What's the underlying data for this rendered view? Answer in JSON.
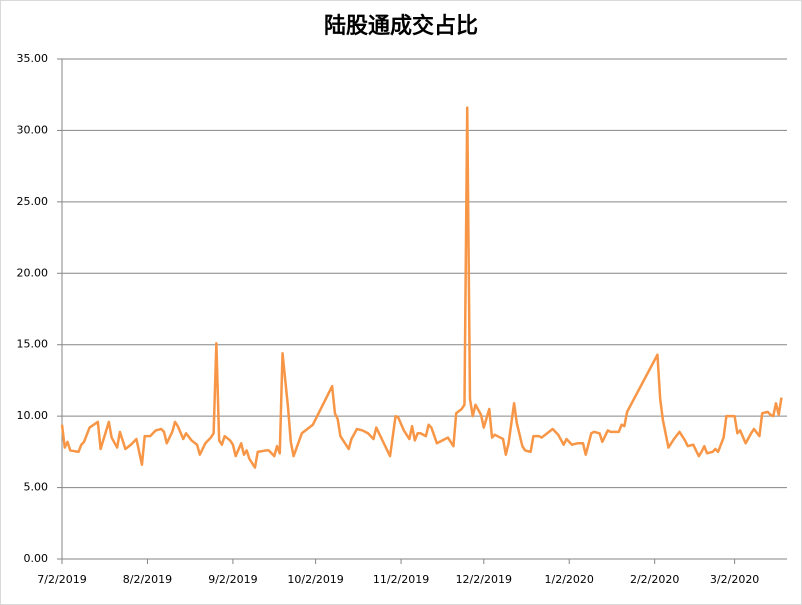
{
  "chart_data": {
    "type": "line",
    "title": "陆股通成交占比",
    "x": [
      "2019-07-02",
      "2019-07-03",
      "2019-07-04",
      "2019-07-05",
      "2019-07-08",
      "2019-07-09",
      "2019-07-10",
      "2019-07-12",
      "2019-07-15",
      "2019-07-16",
      "2019-07-19",
      "2019-07-20",
      "2019-07-22",
      "2019-07-23",
      "2019-07-25",
      "2019-07-27",
      "2019-07-29",
      "2019-07-31",
      "2019-08-01",
      "2019-08-03",
      "2019-08-05",
      "2019-08-07",
      "2019-08-08",
      "2019-08-09",
      "2019-08-11",
      "2019-08-12",
      "2019-08-13",
      "2019-08-15",
      "2019-08-16",
      "2019-08-18",
      "2019-08-20",
      "2019-08-21",
      "2019-08-23",
      "2019-08-25",
      "2019-08-26",
      "2019-08-27",
      "2019-08-28",
      "2019-08-29",
      "2019-08-30",
      "2019-09-01",
      "2019-09-02",
      "2019-09-03",
      "2019-09-05",
      "2019-09-06",
      "2019-09-07",
      "2019-09-08",
      "2019-09-10",
      "2019-09-11",
      "2019-09-14",
      "2019-09-15",
      "2019-09-17",
      "2019-09-18",
      "2019-09-19",
      "2019-09-20",
      "2019-09-22",
      "2019-09-23",
      "2019-09-24",
      "2019-09-27",
      "2019-10-01",
      "2019-10-08",
      "2019-10-09",
      "2019-10-10",
      "2019-10-11",
      "2019-10-14",
      "2019-10-15",
      "2019-10-17",
      "2019-10-19",
      "2019-10-21",
      "2019-10-23",
      "2019-10-24",
      "2019-10-26",
      "2019-10-28",
      "2019-10-29",
      "2019-10-31",
      "2019-11-01",
      "2019-11-03",
      "2019-11-05",
      "2019-11-06",
      "2019-11-07",
      "2019-11-08",
      "2019-11-09",
      "2019-11-11",
      "2019-11-12",
      "2019-11-13",
      "2019-11-15",
      "2019-11-18",
      "2019-11-19",
      "2019-11-21",
      "2019-11-22",
      "2019-11-24",
      "2019-11-25",
      "2019-11-26",
      "2019-11-27",
      "2019-11-28",
      "2019-11-29",
      "2019-12-01",
      "2019-12-02",
      "2019-12-04",
      "2019-12-05",
      "2019-12-06",
      "2019-12-08",
      "2019-12-09",
      "2019-12-10",
      "2019-12-11",
      "2019-12-13",
      "2019-12-14",
      "2019-12-16",
      "2019-12-17",
      "2019-12-19",
      "2019-12-20",
      "2019-12-22",
      "2019-12-23",
      "2019-12-25",
      "2019-12-27",
      "2019-12-29",
      "2019-12-31",
      "2020-01-01",
      "2020-01-03",
      "2020-01-05",
      "2020-01-07",
      "2020-01-08",
      "2020-01-10",
      "2020-01-11",
      "2020-01-13",
      "2020-01-14",
      "2020-01-16",
      "2020-01-17",
      "2020-01-20",
      "2020-01-21",
      "2020-01-22",
      "2020-01-23",
      "2020-02-03",
      "2020-02-04",
      "2020-02-05",
      "2020-02-07",
      "2020-02-09",
      "2020-02-11",
      "2020-02-13",
      "2020-02-14",
      "2020-02-16",
      "2020-02-18",
      "2020-02-19",
      "2020-02-20",
      "2020-02-21",
      "2020-02-23",
      "2020-02-24",
      "2020-02-25",
      "2020-02-27",
      "2020-02-28",
      "2020-03-02",
      "2020-03-03",
      "2020-03-04",
      "2020-03-06",
      "2020-03-08",
      "2020-03-09",
      "2020-03-11",
      "2020-03-12",
      "2020-03-14",
      "2020-03-15",
      "2020-03-16",
      "2020-03-17",
      "2020-03-18",
      "2020-03-19"
    ],
    "series": [
      {
        "color": "#f79646",
        "values": [
          9.4,
          7.8,
          8.2,
          7.6,
          7.5,
          8.0,
          8.2,
          9.2,
          9.6,
          7.7,
          9.6,
          8.5,
          7.8,
          8.9,
          7.7,
          8.0,
          8.4,
          6.6,
          8.6,
          8.6,
          9.0,
          9.1,
          8.9,
          8.1,
          8.9,
          9.6,
          9.3,
          8.4,
          8.8,
          8.3,
          8.0,
          7.3,
          8.1,
          8.5,
          8.8,
          15.1,
          8.3,
          8.0,
          8.6,
          8.3,
          8.0,
          7.2,
          8.1,
          7.3,
          7.6,
          7.0,
          6.4,
          7.5,
          7.6,
          7.6,
          7.2,
          7.9,
          7.4,
          14.4,
          10.6,
          8.2,
          7.2,
          8.8,
          9.4,
          12.1,
          10.2,
          9.8,
          8.6,
          7.7,
          8.4,
          9.1,
          9.0,
          8.8,
          8.4,
          9.2,
          8.4,
          7.6,
          7.2,
          10.0,
          9.9,
          9.0,
          8.4,
          9.3,
          8.3,
          8.8,
          8.8,
          8.6,
          9.4,
          9.2,
          8.1,
          8.4,
          8.5,
          7.9,
          10.2,
          10.5,
          10.8,
          31.6,
          11.2,
          10.0,
          10.8,
          10.1,
          9.2,
          10.5,
          8.5,
          8.7,
          8.5,
          8.4,
          7.3,
          8.1,
          10.9,
          9.5,
          7.9,
          7.6,
          7.5,
          8.6,
          8.6,
          8.5,
          8.8,
          9.1,
          8.7,
          8.0,
          8.4,
          8.0,
          8.1,
          8.1,
          7.3,
          8.8,
          8.9,
          8.8,
          8.2,
          9.0,
          8.9,
          8.9,
          9.4,
          9.3,
          10.3,
          14.3,
          11.2,
          9.7,
          7.8,
          8.4,
          8.9,
          8.3,
          7.9,
          8.0,
          7.2,
          7.5,
          7.9,
          7.4,
          7.5,
          7.7,
          7.5,
          8.5,
          10.0,
          10.0,
          8.8,
          9.0,
          8.1,
          8.8,
          9.1,
          8.6,
          10.2,
          10.3,
          10.1,
          10.0,
          10.9,
          10.1,
          11.3
        ]
      }
    ],
    "xlim": [
      "2019-07-02",
      "2020-03-21"
    ],
    "xticks": [
      {
        "value": "2019-07-02",
        "label": "7/2/2019"
      },
      {
        "value": "2019-08-02",
        "label": "8/2/2019"
      },
      {
        "value": "2019-09-02",
        "label": "9/2/2019"
      },
      {
        "value": "2019-10-02",
        "label": "10/2/2019"
      },
      {
        "value": "2019-11-02",
        "label": "11/2/2019"
      },
      {
        "value": "2019-12-02",
        "label": "12/2/2019"
      },
      {
        "value": "2020-01-02",
        "label": "1/2/2020"
      },
      {
        "value": "2020-02-02",
        "label": "2/2/2020"
      },
      {
        "value": "2020-03-02",
        "label": "3/2/2020"
      }
    ],
    "ylim": [
      0,
      35
    ],
    "yticks": [
      {
        "value": 0,
        "label": "0.00"
      },
      {
        "value": 5,
        "label": "5.00"
      },
      {
        "value": 10,
        "label": "10.00"
      },
      {
        "value": 15,
        "label": "15.00"
      },
      {
        "value": 20,
        "label": "20.00"
      },
      {
        "value": 25,
        "label": "25.00"
      },
      {
        "value": 30,
        "label": "30.00"
      },
      {
        "value": 35,
        "label": "35.00"
      }
    ],
    "grid": true
  }
}
